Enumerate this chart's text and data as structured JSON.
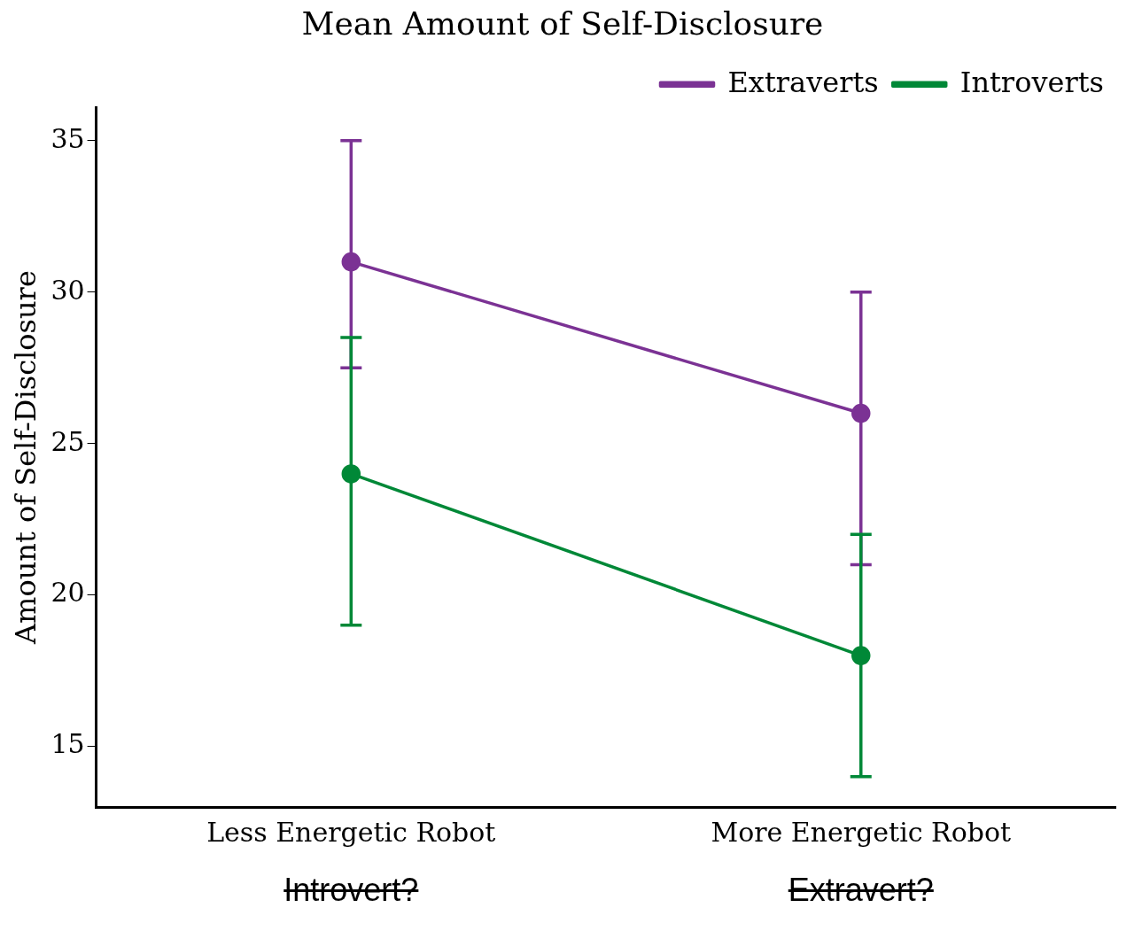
{
  "chart_data": {
    "type": "line",
    "title": "Mean Amount of Self-Disclosure",
    "ylabel": "Amount of Self-Disclosure",
    "categories": [
      "Less Energetic Robot",
      "More Energetic Robot"
    ],
    "series": [
      {
        "name": "Extraverts",
        "color": "#7b3294",
        "values": [
          31,
          26
        ],
        "errors": [
          [
            27.5,
            35
          ],
          [
            21,
            30
          ]
        ]
      },
      {
        "name": "Introverts",
        "color": "#008837",
        "values": [
          24,
          18
        ],
        "errors": [
          [
            19,
            28.5
          ],
          [
            14,
            22
          ]
        ]
      }
    ],
    "ylim": [
      13,
      36.1
    ],
    "yticks": [
      15,
      20,
      25,
      30,
      35
    ],
    "legend": "top right",
    "marker": "circle",
    "grid": false,
    "annotations": [
      "Introvert?",
      "Extravert?"
    ]
  }
}
